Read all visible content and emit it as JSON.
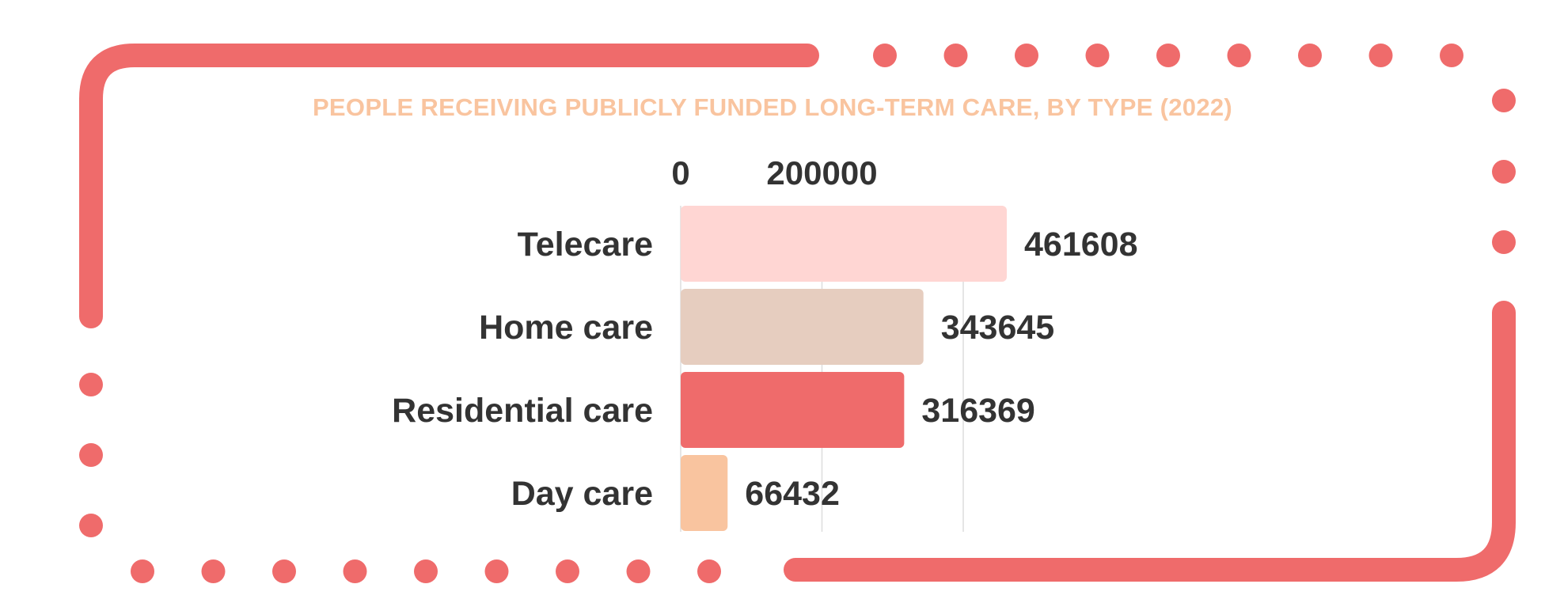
{
  "colors": {
    "frame": "#EF6B6B",
    "title": "#F9C49F",
    "text": "#333333",
    "grid": "#DDDDDD"
  },
  "chart_data": {
    "type": "bar",
    "orientation": "horizontal",
    "title": "PEOPLE RECEIVING PUBLICLY FUNDED LONG-TERM CARE, BY TYPE (2022)",
    "categories": [
      "Telecare",
      "Home care",
      "Residential care",
      "Day care"
    ],
    "values": [
      461608,
      343645,
      316369,
      66432
    ],
    "bar_colors": [
      "#FFD6D3",
      "#E6CDBF",
      "#EF6B6B",
      "#F9C49F"
    ],
    "x_ticks": [
      0,
      200000
    ],
    "xlim": [
      0,
      461608
    ],
    "grid": true,
    "legend": "none"
  }
}
